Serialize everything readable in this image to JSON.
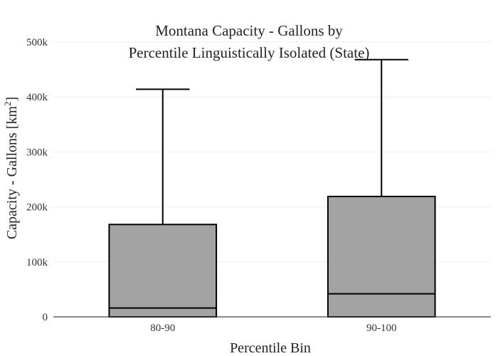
{
  "chart_data": {
    "type": "box",
    "title_lines": [
      "Montana Capacity - Gallons by",
      "Percentile Linguistically Isolated (State)"
    ],
    "xlabel": "Percentile Bin",
    "ylabel": "Capacity - Gallons  [km",
    "ylabel_superscript": "2",
    "ylabel_suffix": "]",
    "ylim": [
      0,
      500000
    ],
    "yticks": [
      0,
      100000,
      200000,
      300000,
      400000,
      500000
    ],
    "ytick_labels": [
      "0",
      "100k",
      "200k",
      "300k",
      "400k",
      "500k"
    ],
    "grid": true,
    "categories": [
      "80-90",
      "90-100"
    ],
    "boxes": [
      {
        "category": "80-90",
        "min": 0,
        "q1": 0,
        "median": 16000,
        "q3": 168000,
        "max": 414000
      },
      {
        "category": "90-100",
        "min": 0,
        "q1": 0,
        "median": 42000,
        "q3": 219000,
        "max": 468000
      }
    ],
    "box_color": "#a3a3a3",
    "line_color": "#000000"
  }
}
